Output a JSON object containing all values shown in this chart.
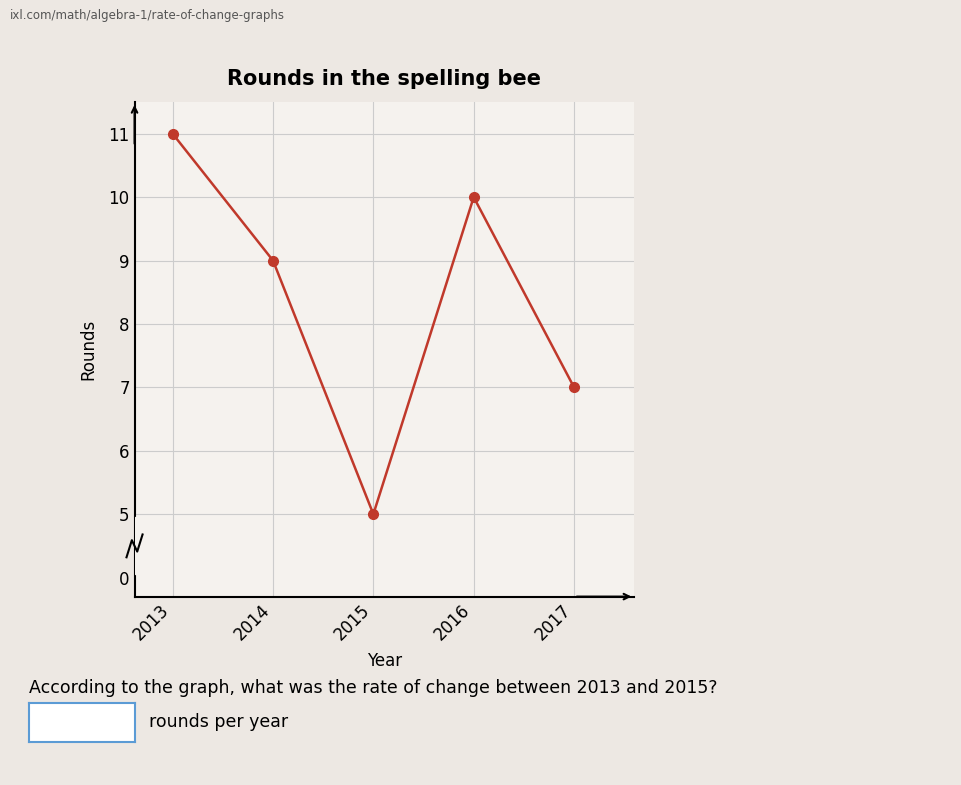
{
  "title": "Rounds in the spelling bee",
  "url_text": "ixl.com/math/algebra-1/rate-of-change-graphs",
  "xlabel": "Year",
  "ylabel": "Rounds",
  "years": [
    2013,
    2014,
    2015,
    2016,
    2017
  ],
  "rounds": [
    11,
    9,
    5,
    10,
    7
  ],
  "line_color": "#c0392b",
  "marker_color": "#c0392b",
  "marker_size": 7,
  "line_width": 1.8,
  "yticks": [
    0,
    5,
    6,
    7,
    8,
    9,
    10,
    11
  ],
  "ylim": [
    0,
    11.8
  ],
  "grid_color": "#cccccc",
  "bg_color": "#f5f2ee",
  "question_text": "According to the graph, what was the rate of change between 2013 and 2015?",
  "answer_suffix": "rounds per year",
  "title_fontsize": 15,
  "title_fontweight": "bold",
  "axis_label_fontsize": 12,
  "tick_fontsize": 12
}
